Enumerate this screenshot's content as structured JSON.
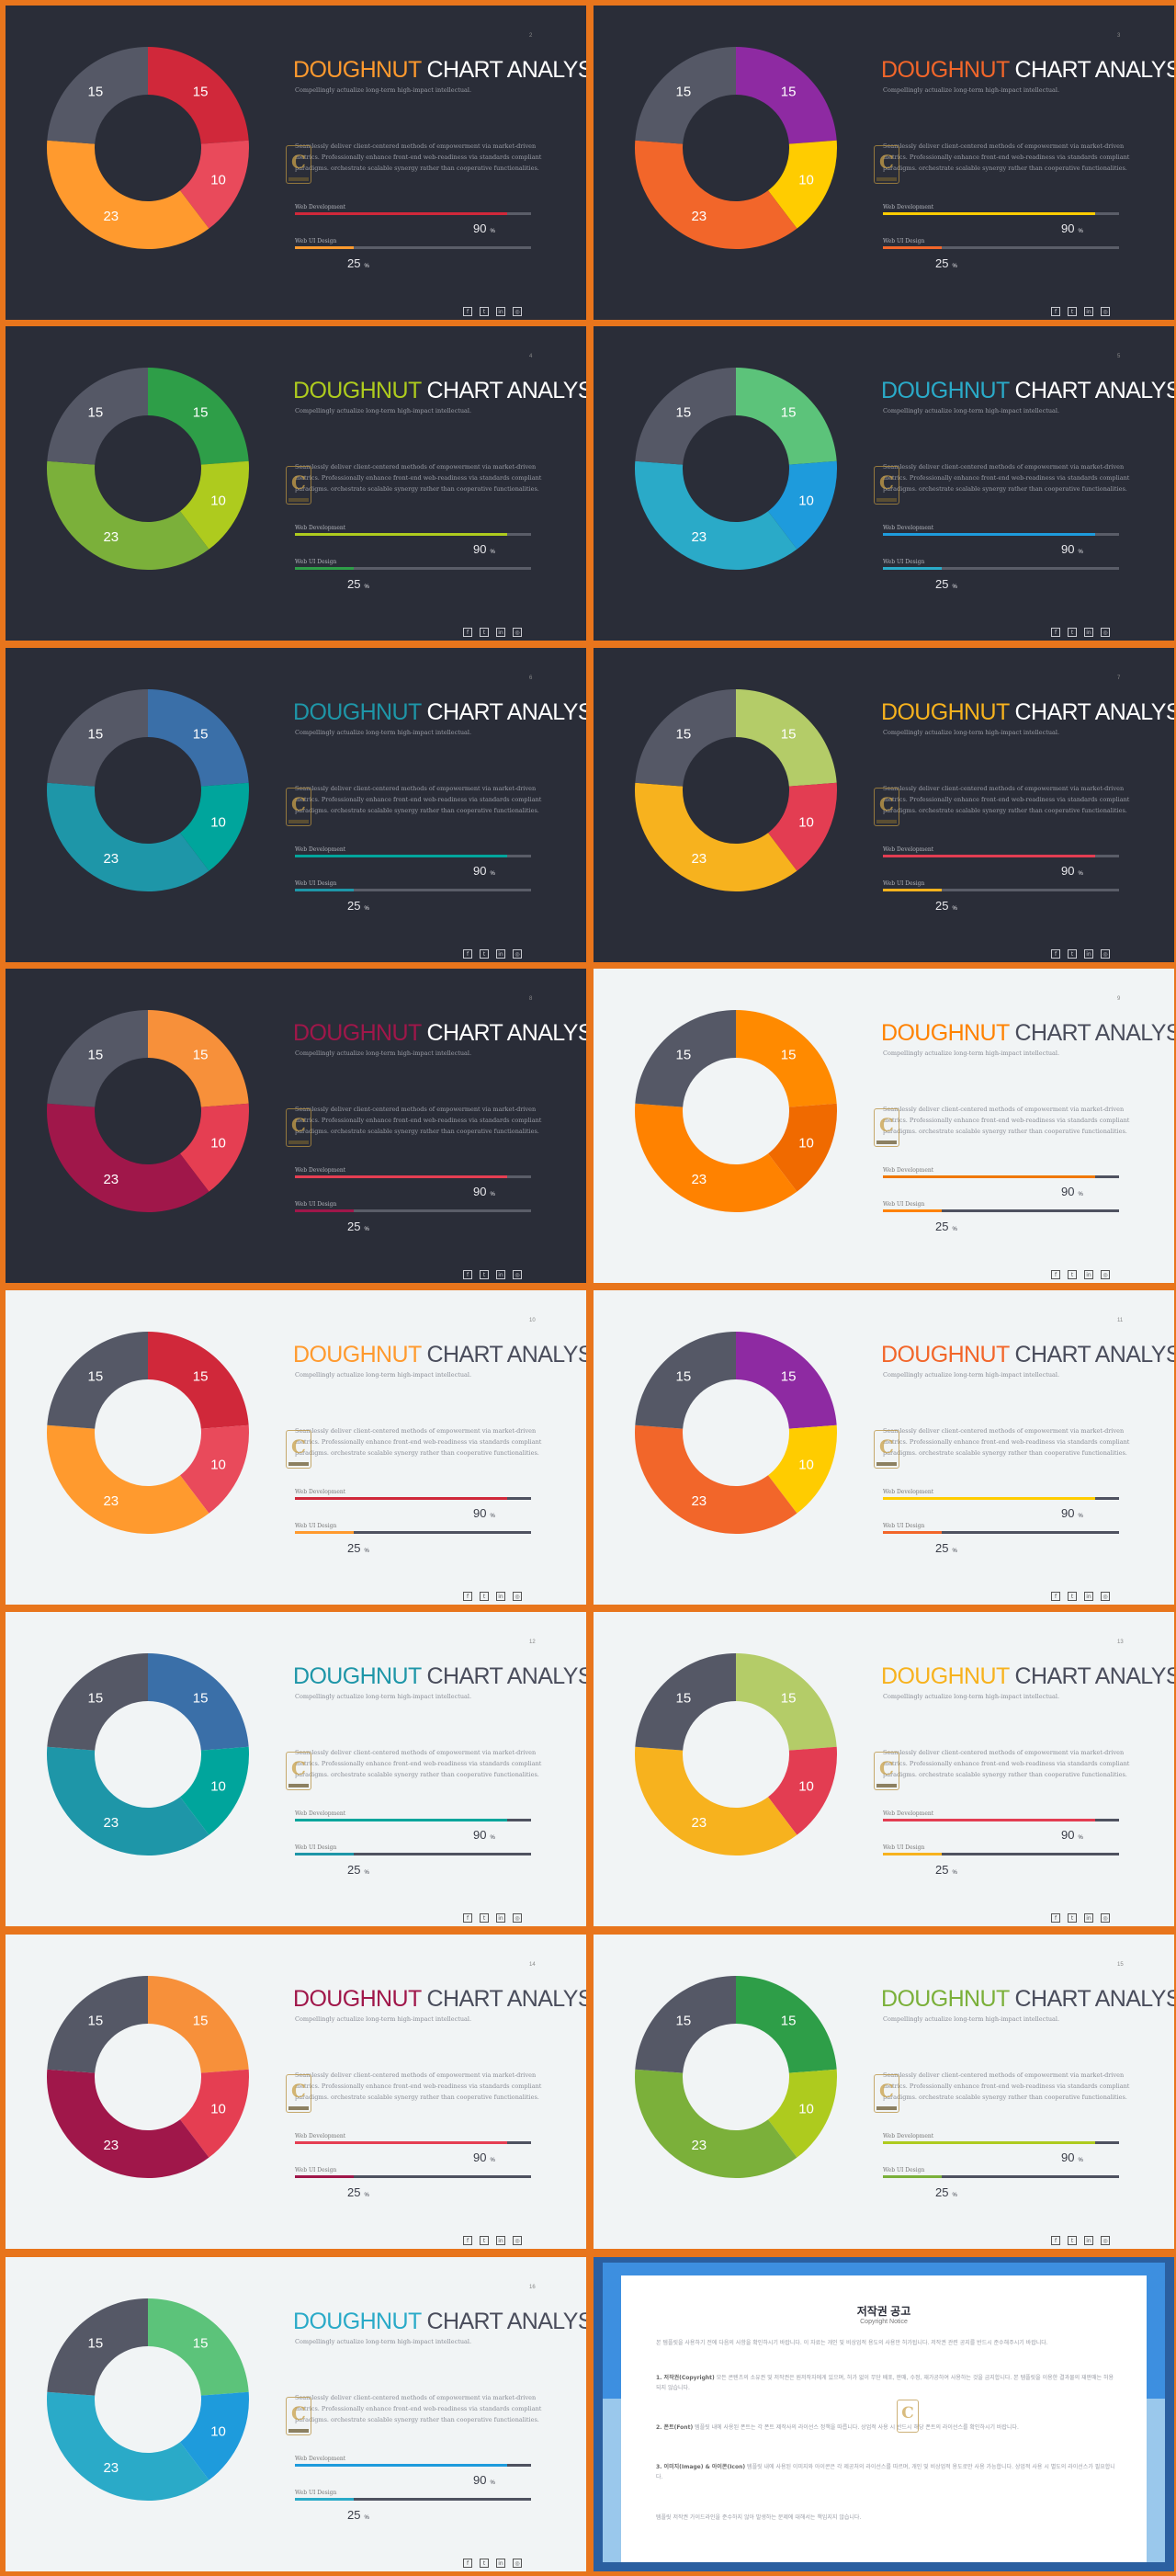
{
  "common": {
    "title_accent": "DOUGHNUT",
    "title_rest": " CHART ANALYSIS",
    "subtitle": "Compellingly actualize long-term high-impact intellectual.",
    "body": "Seamlessly deliver client-centered methods of empowerment via market-driven metrics. Professionally enhance front-end web-readiness via standards compliant paradigms. orchestrate scalable synergy rather than cooperative functionalities.",
    "bar1_label": "Web Development",
    "bar1_value": 90,
    "bar2_label": "Web UI Design",
    "bar2_value": 25,
    "percent_sign": "%",
    "watermark_letter": "C",
    "social_icons": [
      "facebook-icon",
      "twitter-icon",
      "linkedin-icon",
      "instagram-icon"
    ]
  },
  "chart_data": [
    {
      "type": "pie",
      "slide": 1,
      "theme": "dark",
      "page": "2",
      "values": [
        15,
        10,
        23,
        15
      ],
      "colors": [
        "#D0283A",
        "#E94A5B",
        "#FF9A2E",
        "#555866"
      ],
      "accent": "#FF9A2E",
      "bar1_color": "#D0283A",
      "bar2_color": "#FF9A2E"
    },
    {
      "type": "pie",
      "slide": 2,
      "theme": "dark",
      "page": "3",
      "values": [
        15,
        10,
        23,
        15
      ],
      "colors": [
        "#8E2AA2",
        "#FFCC00",
        "#F2662A",
        "#555866"
      ],
      "accent": "#F2662A",
      "bar1_color": "#FFCC00",
      "bar2_color": "#F2662A"
    },
    {
      "type": "pie",
      "slide": 3,
      "theme": "dark",
      "page": "4",
      "values": [
        15,
        10,
        23,
        15
      ],
      "colors": [
        "#2E9E48",
        "#AECB1E",
        "#7BB03A",
        "#555866"
      ],
      "accent": "#AECB1E",
      "bar1_color": "#AECB1E",
      "bar2_color": "#2E9E48"
    },
    {
      "type": "pie",
      "slide": 4,
      "theme": "dark",
      "page": "5",
      "values": [
        15,
        10,
        23,
        15
      ],
      "colors": [
        "#5CC37A",
        "#1E9BDC",
        "#2AAAC8",
        "#555866"
      ],
      "accent": "#2AAAC8",
      "bar1_color": "#1E9BDC",
      "bar2_color": "#2AAAC8"
    },
    {
      "type": "pie",
      "slide": 5,
      "theme": "dark",
      "page": "6",
      "values": [
        15,
        10,
        23,
        15
      ],
      "colors": [
        "#3A6FA8",
        "#00A59C",
        "#1E96A8",
        "#555866"
      ],
      "accent": "#1E96A8",
      "bar1_color": "#00A59C",
      "bar2_color": "#1E96A8"
    },
    {
      "type": "pie",
      "slide": 6,
      "theme": "dark",
      "page": "7",
      "values": [
        15,
        10,
        23,
        15
      ],
      "colors": [
        "#B4CC68",
        "#E33D52",
        "#F7B21E",
        "#555866"
      ],
      "accent": "#F7B21E",
      "bar1_color": "#E33D52",
      "bar2_color": "#F7B21E"
    },
    {
      "type": "pie",
      "slide": 7,
      "theme": "dark",
      "page": "8",
      "values": [
        15,
        10,
        23,
        15
      ],
      "colors": [
        "#F7903A",
        "#E53E52",
        "#A0174A",
        "#555866"
      ],
      "accent": "#A0174A",
      "bar1_color": "#E53E52",
      "bar2_color": "#A0174A"
    },
    {
      "type": "pie",
      "slide": 8,
      "theme": "light",
      "page": "9",
      "values": [
        15,
        10,
        23,
        15
      ],
      "colors": [
        "#FF8A00",
        "#F06A00",
        "#FF8200",
        "#555866"
      ],
      "accent": "#FF8200",
      "bar1_color": "#F07800",
      "bar2_color": "#FF8200"
    },
    {
      "type": "pie",
      "slide": 9,
      "theme": "light",
      "page": "10",
      "values": [
        15,
        10,
        23,
        15
      ],
      "colors": [
        "#D0283A",
        "#E94A5B",
        "#FF9A2E",
        "#555866"
      ],
      "accent": "#FF9A2E",
      "bar1_color": "#D0283A",
      "bar2_color": "#FF9A2E"
    },
    {
      "type": "pie",
      "slide": 10,
      "theme": "light",
      "page": "11",
      "values": [
        15,
        10,
        23,
        15
      ],
      "colors": [
        "#8E2AA2",
        "#FFCC00",
        "#F2662A",
        "#555866"
      ],
      "accent": "#F2662A",
      "bar1_color": "#FFCC00",
      "bar2_color": "#F2662A"
    },
    {
      "type": "pie",
      "slide": 11,
      "theme": "light",
      "page": "12",
      "values": [
        15,
        10,
        23,
        15
      ],
      "colors": [
        "#3A6FA8",
        "#00A59C",
        "#1E96A8",
        "#555866"
      ],
      "accent": "#1E96A8",
      "bar1_color": "#00A59C",
      "bar2_color": "#1E96A8"
    },
    {
      "type": "pie",
      "slide": 12,
      "theme": "light",
      "page": "13",
      "values": [
        15,
        10,
        23,
        15
      ],
      "colors": [
        "#B4CC68",
        "#E33D52",
        "#F7B21E",
        "#555866"
      ],
      "accent": "#F7B21E",
      "bar1_color": "#E33D52",
      "bar2_color": "#F7B21E"
    },
    {
      "type": "pie",
      "slide": 13,
      "theme": "light",
      "page": "14",
      "values": [
        15,
        10,
        23,
        15
      ],
      "colors": [
        "#F7903A",
        "#E53E52",
        "#A0174A",
        "#555866"
      ],
      "accent": "#A0174A",
      "bar1_color": "#E53E52",
      "bar2_color": "#A0174A"
    },
    {
      "type": "pie",
      "slide": 14,
      "theme": "light",
      "page": "15",
      "values": [
        15,
        10,
        23,
        15
      ],
      "colors": [
        "#2E9E48",
        "#AECB1E",
        "#7BB03A",
        "#555866"
      ],
      "accent": "#7BB03A",
      "bar1_color": "#AECB1E",
      "bar2_color": "#7BB03A"
    },
    {
      "type": "pie",
      "slide": 15,
      "theme": "light",
      "page": "16",
      "values": [
        15,
        10,
        23,
        15
      ],
      "colors": [
        "#5CC37A",
        "#1E9BDC",
        "#2AAAC8",
        "#555866"
      ],
      "accent": "#2AAAC8",
      "bar1_color": "#1E9BDC",
      "bar2_color": "#2AAAC8"
    }
  ],
  "copyright": {
    "title": "저작권 공고",
    "subtitle": "Copyright Notice",
    "intro": "본 템플릿을 사용하기 전에 다음의 사항을 확인하시기 바랍니다. 이 자료는 개인 및 비상업적 용도의 사용만 허가됩니다. 저작권 관련 공지를 반드시 준수해주시기 바랍니다.",
    "item1_head": "1. 저작권(Copyright)",
    "item1_text": "모든 콘텐츠의 소유권 및 저작권은 원저작자에게 있으며, 허가 없이 무단 배포, 판매, 수정, 재가공하여 사용하는 것을 금지합니다. 본 템플릿을 이용한 결과물의 재판매는 허용되지 않습니다.",
    "item2_head": "2. 폰트(Font)",
    "item2_text": "템플릿 내에 사용된 폰트는 각 폰트 제작사의 라이선스 정책을 따릅니다. 상업적 사용 시 반드시 해당 폰트의 라이선스를 확인하시기 바랍니다.",
    "item3_head": "3. 이미지(Image) & 아이콘(Icon)",
    "item3_text": "템플릿 내에 사용된 이미지와 아이콘은 각 제공처의 라이선스를 따르며, 개인 및 비상업적 용도로만 사용 가능합니다. 상업적 사용 시 별도의 라이선스가 필요합니다.",
    "outro": "템플릿 저작권 가이드라인을 준수하지 않아 발생하는 문제에 대해서는 책임지지 않습니다."
  }
}
